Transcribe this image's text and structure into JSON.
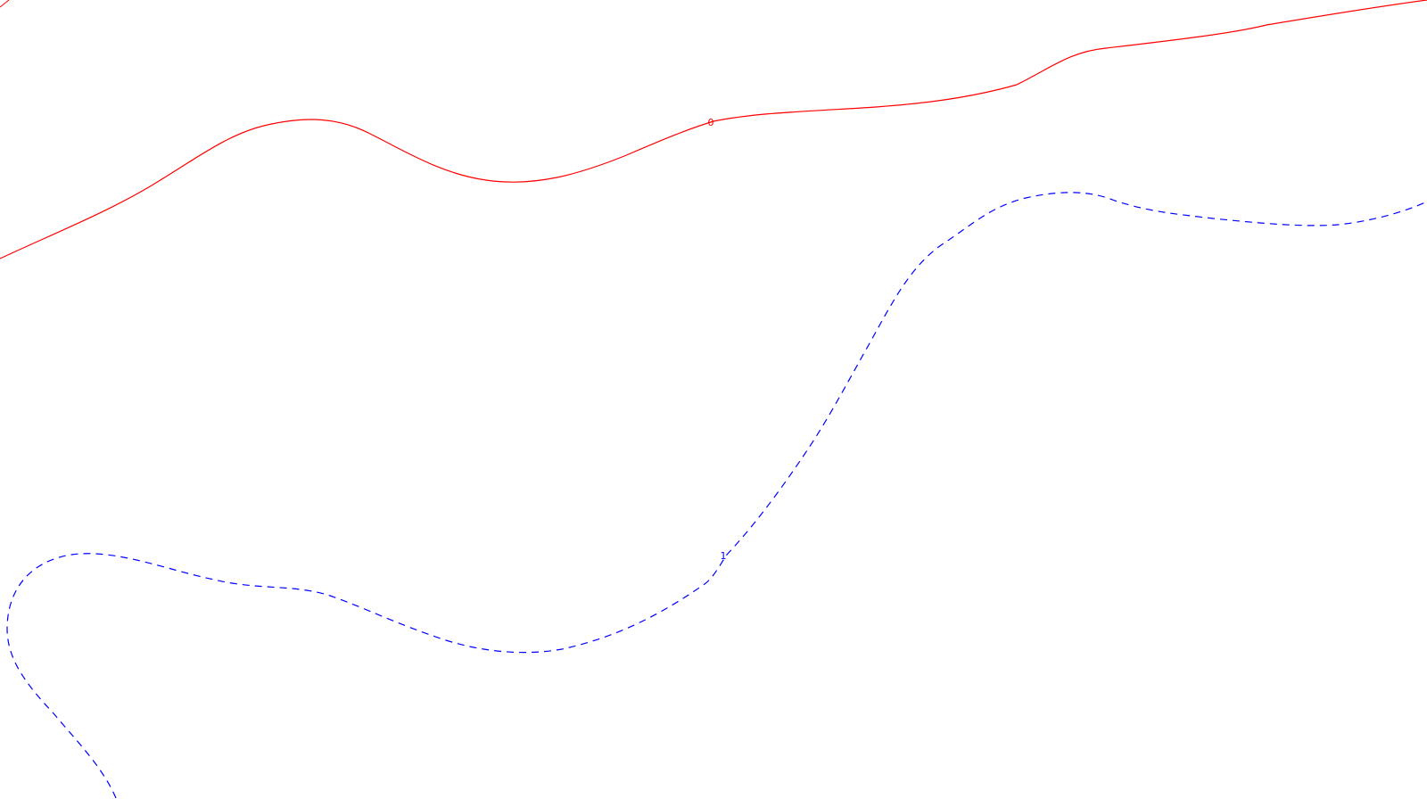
{
  "map": {
    "background": "#ffffff",
    "contours": [
      {
        "id": "contour-0",
        "label": "0",
        "color": "#ff0000",
        "style": "solid"
      },
      {
        "id": "contour-1",
        "label": "1",
        "color": "#0000ff",
        "style": "dashed"
      }
    ]
  }
}
